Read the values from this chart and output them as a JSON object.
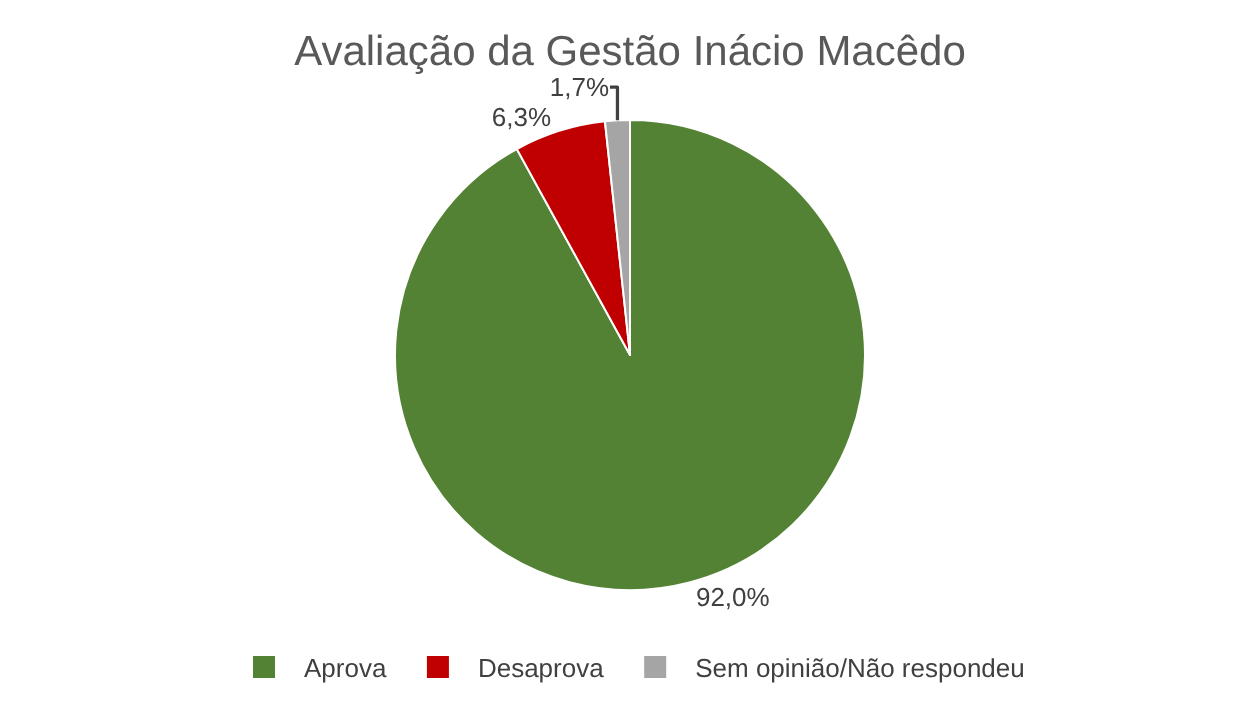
{
  "chart_data": {
    "type": "pie",
    "title": "Avaliação da Gestão Inácio Macêdo",
    "categories": [
      "Aprova",
      "Desaprova",
      "Sem opinião/Não respondeu"
    ],
    "values": [
      92.0,
      6.3,
      1.7
    ],
    "colors": [
      "#548235",
      "#c00000",
      "#a5a5a5"
    ],
    "value_labels": [
      "92,0%",
      "6,3%",
      "1,7%"
    ],
    "legend": "bottom"
  }
}
